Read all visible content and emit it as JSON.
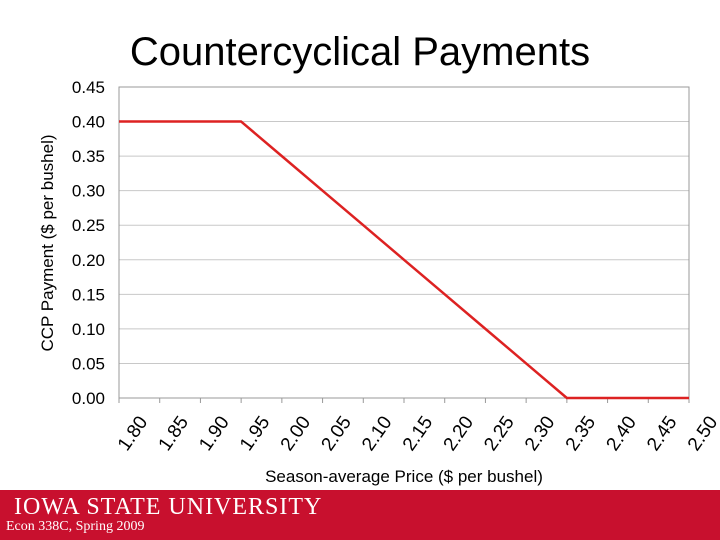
{
  "slide": {
    "title": "Countercyclical Payments",
    "footer_logo": "IOWA STATE UNIVERSITY",
    "footer_course": "Econ 338C, Spring 2009"
  },
  "chart_data": {
    "type": "line",
    "title": "Countercyclical Payments",
    "xlabel": "Season-average Price ($ per bushel)",
    "ylabel": "CCP Payment ($ per bushel)",
    "categories": [
      "1.80",
      "1.85",
      "1.90",
      "1.95",
      "2.00",
      "2.05",
      "2.10",
      "2.15",
      "2.20",
      "2.25",
      "2.30",
      "2.35",
      "2.40",
      "2.45",
      "2.50"
    ],
    "yticks": [
      "0.00",
      "0.05",
      "0.10",
      "0.15",
      "0.20",
      "0.25",
      "0.30",
      "0.35",
      "0.40",
      "0.45"
    ],
    "xlim": [
      1.8,
      2.5
    ],
    "ylim": [
      0,
      0.45
    ],
    "grid": true,
    "legend": "none",
    "series": [
      {
        "values": [
          0.4,
          0.4,
          0.4,
          0.4,
          0.35,
          0.3,
          0.25,
          0.2,
          0.15,
          0.1,
          0.05,
          0.0,
          0.0,
          0.0,
          0.0
        ]
      }
    ],
    "colors": {
      "line": "#dd2222",
      "grid": "#c8c8c8",
      "axis": "#999999",
      "band": "#c8102e"
    }
  }
}
